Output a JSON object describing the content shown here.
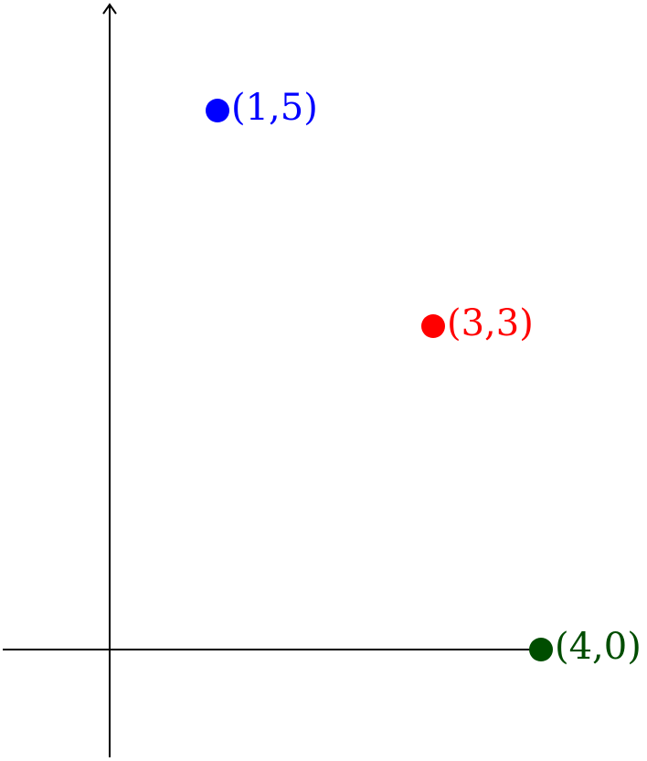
{
  "chart_data": {
    "type": "scatter",
    "title": "",
    "xlabel": "",
    "ylabel": "",
    "grid": false,
    "points": [
      {
        "x": 1,
        "y": 5,
        "label": "(1,5)",
        "color": "#0000ff"
      },
      {
        "x": 3,
        "y": 3,
        "label": "(3,3)",
        "color": "#ff0000"
      },
      {
        "x": 4,
        "y": 0,
        "label": "(4,0)",
        "color": "#004d00"
      }
    ]
  }
}
